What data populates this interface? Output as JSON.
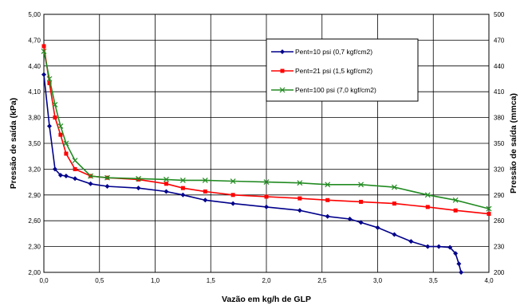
{
  "chart_data": {
    "type": "line",
    "xlabel": "Vazão em kg/h de GLP",
    "ylabel_left": "Pressão de saída (kPa)",
    "ylabel_right": "Pressão de saída (mmca)",
    "xlim": [
      0,
      4
    ],
    "ylim_left": [
      2.0,
      5.0
    ],
    "ylim_right": [
      200,
      500
    ],
    "x_ticks": [
      "0,0",
      "0,5",
      "1,0",
      "1,5",
      "2,0",
      "2,5",
      "3,0",
      "3,5",
      "4,0"
    ],
    "y_ticks_left": [
      "2,00",
      "2,30",
      "2,60",
      "2,90",
      "3,20",
      "3,50",
      "3,80",
      "4,10",
      "4,40",
      "4,70",
      "5,00"
    ],
    "y_ticks_right": [
      "200",
      "230",
      "260",
      "290",
      "320",
      "350",
      "380",
      "410",
      "440",
      "470",
      "500"
    ],
    "grid": true,
    "legend_position": "top-right",
    "series": [
      {
        "name": "Pent=10 psi (0,7 kgf/cm2)",
        "color": "#00008b",
        "marker": "diamond",
        "x": [
          0.0,
          0.05,
          0.1,
          0.15,
          0.2,
          0.28,
          0.42,
          0.57,
          0.85,
          1.1,
          1.25,
          1.45,
          1.7,
          2.0,
          2.3,
          2.55,
          2.75,
          2.85,
          3.0,
          3.15,
          3.3,
          3.45,
          3.55,
          3.65,
          3.7,
          3.73,
          3.75
        ],
        "y": [
          4.3,
          3.7,
          3.2,
          3.13,
          3.12,
          3.09,
          3.03,
          3.0,
          2.98,
          2.94,
          2.9,
          2.84,
          2.8,
          2.76,
          2.72,
          2.65,
          2.62,
          2.58,
          2.52,
          2.44,
          2.36,
          2.3,
          2.3,
          2.29,
          2.22,
          2.1,
          2.0
        ]
      },
      {
        "name": "Pent=21 psi (1,5 kgf/cm2)",
        "color": "#ff0000",
        "marker": "square",
        "x": [
          0.0,
          0.05,
          0.1,
          0.15,
          0.2,
          0.28,
          0.42,
          0.57,
          0.85,
          1.1,
          1.25,
          1.45,
          1.7,
          2.0,
          2.3,
          2.55,
          2.85,
          3.15,
          3.45,
          3.7,
          4.0
        ],
        "y": [
          4.63,
          4.2,
          3.8,
          3.6,
          3.38,
          3.2,
          3.12,
          3.1,
          3.08,
          3.03,
          2.98,
          2.94,
          2.9,
          2.88,
          2.86,
          2.84,
          2.82,
          2.8,
          2.76,
          2.72,
          2.68
        ]
      },
      {
        "name": "Pent=100 psi (7,0 kgf/cm2)",
        "color": "#228b22",
        "marker": "x",
        "x": [
          0.0,
          0.05,
          0.1,
          0.15,
          0.2,
          0.28,
          0.42,
          0.57,
          0.85,
          1.1,
          1.25,
          1.45,
          1.7,
          2.0,
          2.3,
          2.55,
          2.85,
          3.15,
          3.45,
          3.7,
          4.0
        ],
        "y": [
          4.57,
          4.25,
          3.95,
          3.7,
          3.5,
          3.3,
          3.12,
          3.1,
          3.09,
          3.08,
          3.07,
          3.07,
          3.06,
          3.05,
          3.04,
          3.02,
          3.02,
          2.99,
          2.9,
          2.84,
          2.74
        ]
      }
    ]
  }
}
